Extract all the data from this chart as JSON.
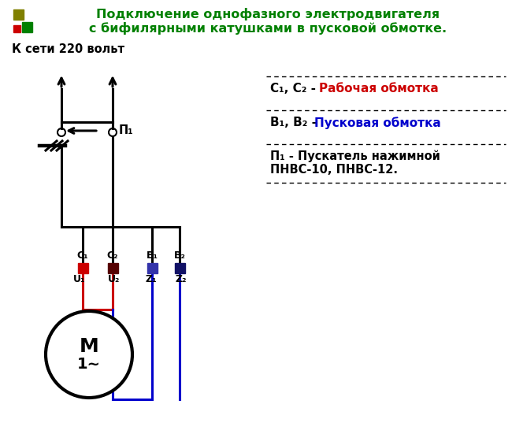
{
  "title_line1": "Подключение однофазного электродвигателя",
  "title_line2": "с бифилярными катушками в пусковой обмотке.",
  "title_color": "#008000",
  "bg_color": "#ffffff",
  "legend_c_prefix": "С₁, С₂ - ",
  "legend_c_colored": "Рабочая обмотка",
  "legend_c_color": "#cc0000",
  "legend_b_prefix": "В₁, В₂ - ",
  "legend_b_colored": "Пусковая обмотка",
  "legend_b_color": "#0000cc",
  "legend_p_line1": "П₁ - Пускатель нажимной",
  "legend_p_line2": "ПНВС-10, ПНВС-12.",
  "network_label": "К сети 220 вольт",
  "P1_label": "П₁",
  "terminal_labels": [
    "С₁",
    "С₂",
    "В₁",
    "В₂"
  ],
  "terminal_sublabels": [
    "U₁",
    "U₂",
    "Z₁",
    "Z₂"
  ],
  "motor_label": "М",
  "motor_sublabel": "1∼",
  "wire_red": "#cc0000",
  "wire_blue": "#0000cc",
  "wire_black": "#000000",
  "sq_red": "#cc0000",
  "sq_darkred": "#550000",
  "sq_blue": "#3333aa",
  "sq_darkblue": "#111166",
  "sq_olive": "#808000",
  "sq_green": "#008000"
}
